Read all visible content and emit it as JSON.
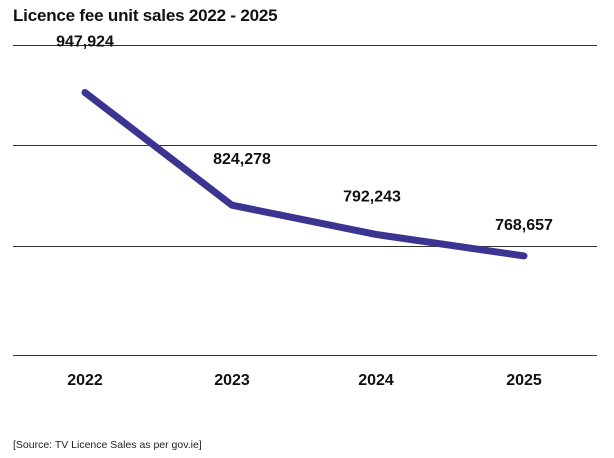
{
  "chart_data": {
    "type": "line",
    "title": "Licence fee unit sales 2022 - 2025",
    "categories": [
      "2022",
      "2023",
      "2024",
      "2025"
    ],
    "series": [
      {
        "values": [
          947924,
          824278,
          792243,
          768657
        ]
      }
    ],
    "data_labels": [
      "947,924",
      "824,278",
      "792,243",
      "768,657"
    ],
    "ylim": [
      660000,
      1000000
    ],
    "grid": true,
    "line_color": "#3b3491",
    "source": "[Source: TV Licence Sales as per gov.ie]"
  }
}
